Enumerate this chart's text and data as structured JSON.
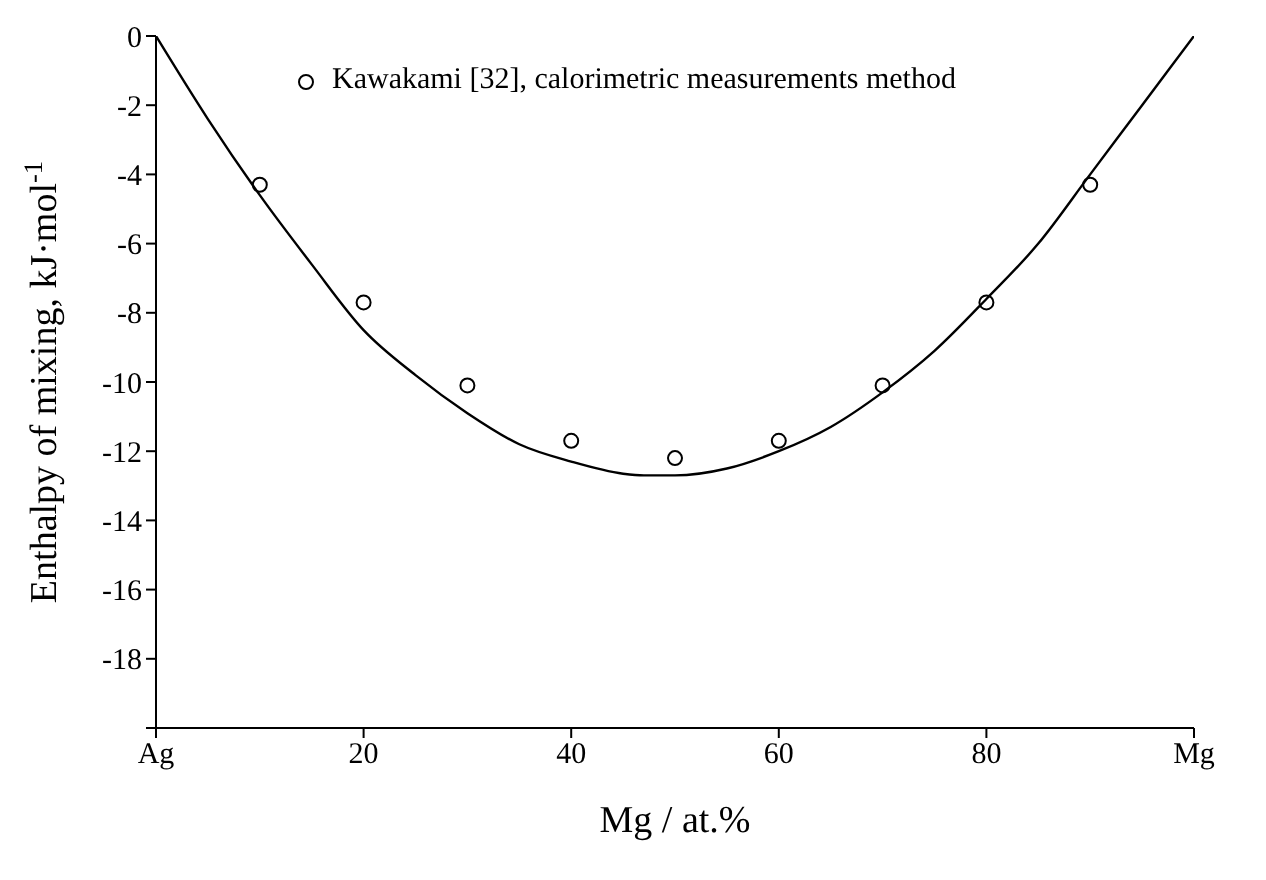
{
  "chart_data": {
    "type": "scatter",
    "xlabel": "Mg / at.%",
    "ylabel": "Enthalpy of  mixing,  kJ·mol$^{-1}$",
    "xlim": [
      0,
      100
    ],
    "xticks": [
      {
        "value": 0,
        "label": "Ag"
      },
      20,
      40,
      60,
      80,
      {
        "value": 100,
        "label": "Mg"
      }
    ],
    "ylim": [
      -20,
      0
    ],
    "yticks": [
      {
        "value": -20,
        "label": null
      },
      -18,
      -16,
      -14,
      -12,
      -10,
      -8,
      -6,
      -4,
      -2,
      0
    ],
    "grid": false,
    "legend": "top left",
    "series": [
      {
        "type": "line",
        "color": "#000000",
        "marker": "none",
        "x": [
          0,
          5,
          10,
          15,
          20,
          25,
          30,
          35,
          40,
          45,
          47,
          50,
          55,
          60,
          65,
          70,
          75,
          80,
          85,
          90,
          95,
          100
        ],
        "values": [
          0,
          -2.4,
          -4.6,
          -6.6,
          -8.5,
          -9.8,
          -10.9,
          -11.8,
          -12.3,
          -12.65,
          -12.7,
          -12.7,
          -12.5,
          -12.0,
          -11.3,
          -10.3,
          -9.1,
          -7.6,
          -6.0,
          -4.0,
          -2.0,
          0
        ]
      },
      {
        "name": "Kawakami [32], calorimetric measurements method",
        "color": "#000000",
        "marker": "circle",
        "x": [
          10,
          20,
          30,
          40,
          50,
          60,
          70,
          80,
          90
        ],
        "values": [
          -4.3,
          -7.7,
          -10.1,
          -11.7,
          -12.2,
          -11.7,
          -10.1,
          -7.7,
          -4.3
        ]
      }
    ]
  }
}
